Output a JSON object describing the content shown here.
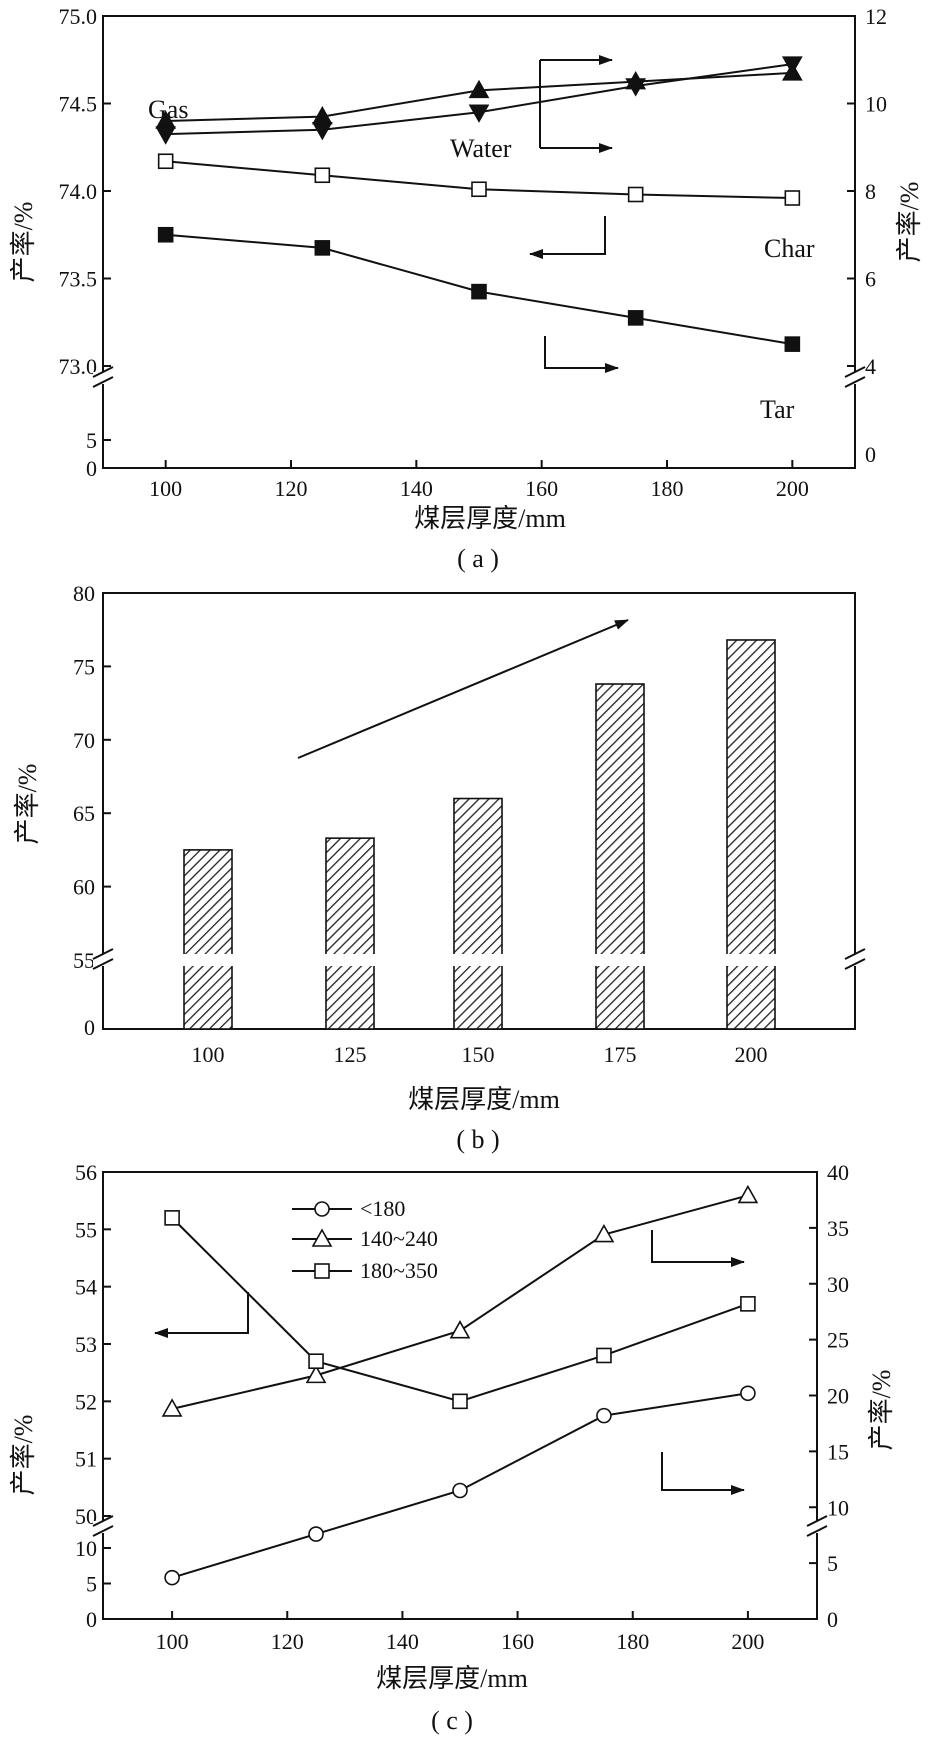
{
  "chart_data": [
    {
      "id": "a",
      "type": "line",
      "panel_label": "( a )",
      "xlabel": "煤层厚度/mm",
      "ylabel_left": "产率/%",
      "ylabel_right": "产率/%",
      "x_ticks": [
        "100",
        "120",
        "140",
        "160",
        "180",
        "200"
      ],
      "xlim": [
        90,
        210
      ],
      "y_left_upper_range": [
        73.0,
        75.0
      ],
      "y_left_upper_ticks": [
        "73.0",
        "73.5",
        "74.0",
        "74.5",
        "75.0"
      ],
      "y_left_lower_ticks": [
        "0",
        "5"
      ],
      "y_right_upper_range": [
        4,
        12
      ],
      "y_right_upper_ticks": [
        "4",
        "6",
        "8",
        "10",
        "12"
      ],
      "y_right_lower_ticks": [
        "0"
      ],
      "axis_break": true,
      "series": [
        {
          "name": "Gas",
          "axis": "right",
          "marker": "triangle-up",
          "x": [
            100,
            125,
            150,
            175,
            200
          ],
          "y": [
            9.6,
            9.7,
            10.3,
            10.5,
            10.7
          ]
        },
        {
          "name": "Water",
          "axis": "right",
          "marker": "triangle-down",
          "x": [
            100,
            125,
            150,
            175,
            200
          ],
          "y": [
            9.3,
            9.4,
            9.8,
            10.4,
            10.9
          ]
        },
        {
          "name": "Char",
          "axis": "left",
          "marker": "square-open",
          "x": [
            100,
            125,
            150,
            175,
            200
          ],
          "y": [
            74.17,
            74.09,
            74.01,
            73.98,
            73.96
          ]
        },
        {
          "name": "Tar",
          "axis": "right",
          "marker": "square-filled",
          "x": [
            100,
            125,
            150,
            175,
            200
          ],
          "y": [
            7.0,
            6.7,
            5.7,
            5.1,
            4.5
          ]
        }
      ]
    },
    {
      "id": "b",
      "type": "bar",
      "panel_label": "( b )",
      "xlabel": "煤层厚度/mm",
      "ylabel": "产率/%",
      "categories": [
        "100",
        "125",
        "150",
        "175",
        "200"
      ],
      "values": [
        62.5,
        63.3,
        66.0,
        73.8,
        76.8
      ],
      "ylim_upper": [
        55,
        80
      ],
      "y_upper_ticks": [
        "55",
        "60",
        "65",
        "70",
        "75",
        "80"
      ],
      "y_lower_ticks": [
        "0"
      ],
      "axis_break": true,
      "fill": "diagonal-hatch"
    },
    {
      "id": "c",
      "type": "line",
      "panel_label": "( c )",
      "xlabel": "煤层厚度/mm",
      "ylabel_left": "产率/%",
      "ylabel_right": "产率/%",
      "x_ticks": [
        "100",
        "120",
        "140",
        "160",
        "180",
        "200"
      ],
      "xlim": [
        88,
        212
      ],
      "y_left_upper_range": [
        50,
        56
      ],
      "y_left_upper_ticks": [
        "50",
        "51",
        "52",
        "53",
        "54",
        "55",
        "56"
      ],
      "y_left_lower_ticks": [
        "0",
        "5",
        "10"
      ],
      "y_right_ticks": [
        "0",
        "5",
        "10",
        "15",
        "20",
        "25",
        "30",
        "35",
        "40"
      ],
      "y_right_range": [
        0,
        40
      ],
      "axis_break": true,
      "legend_position": "top-left",
      "series": [
        {
          "name": "<180",
          "axis": "right",
          "marker": "circle-open",
          "x": [
            100,
            125,
            150,
            175,
            200
          ],
          "y": [
            3.7,
            7.6,
            11.5,
            18.2,
            20.2
          ]
        },
        {
          "name": "140~240",
          "axis": "right",
          "marker": "triangle-open",
          "x": [
            100,
            125,
            150,
            175,
            200
          ],
          "y": [
            18.8,
            21.8,
            25.8,
            34.4,
            37.9
          ]
        },
        {
          "name": "180~350",
          "axis": "left",
          "marker": "square-open",
          "x": [
            100,
            125,
            150,
            175,
            200
          ],
          "y": [
            55.2,
            52.7,
            52.0,
            52.8,
            53.7
          ]
        }
      ]
    }
  ]
}
